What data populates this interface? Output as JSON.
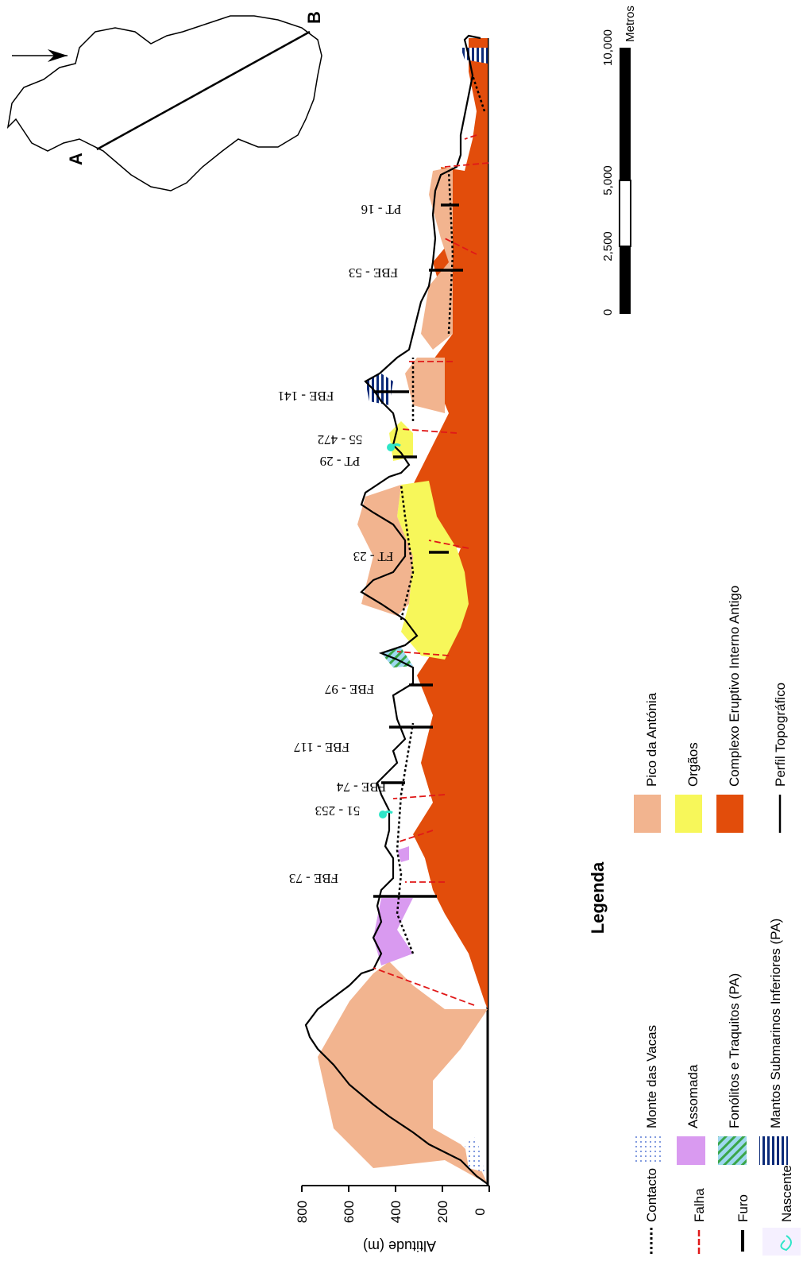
{
  "profile": {
    "y_axis_title": "Altitude (m)",
    "y_ticks": [
      "0",
      "200",
      "400",
      "600",
      "800"
    ],
    "wells": [
      {
        "label": "FBE - 73"
      },
      {
        "label": "51 - 253"
      },
      {
        "label": "FBE - 74"
      },
      {
        "label": "FBE - 117"
      },
      {
        "label": "FBE - 97"
      },
      {
        "label": "FT - 23"
      },
      {
        "label": "PT - 29"
      },
      {
        "label": "55 - 472"
      },
      {
        "label": "FBE - 141"
      },
      {
        "label": "FBE - 53"
      },
      {
        "label": "PT - 16"
      }
    ]
  },
  "map": {
    "point_a": "A",
    "point_b": "B"
  },
  "scale_bar": {
    "unit": "Metros",
    "labels": [
      "0",
      "2,500",
      "5,000",
      "10,000"
    ]
  },
  "legend": {
    "title": "Legenda",
    "items": [
      {
        "label": "Contacto",
        "symbol": "dotted-line"
      },
      {
        "label": "Falha",
        "symbol": "red-dashed-line"
      },
      {
        "label": "Furo",
        "symbol": "black-bar"
      },
      {
        "label": "Nascente",
        "symbol": "spring-icon"
      },
      {
        "label": "Monte das Vacas",
        "symbol": "blue-dots",
        "color": "#5b7bd5"
      },
      {
        "label": "Assomada",
        "symbol": "fill",
        "color": "#d99af0"
      },
      {
        "label": "Fonólitos e Traquitos (PA)",
        "symbol": "hatch",
        "color": "#9fd8f0"
      },
      {
        "label": "Mantos Submarinos Inferiores (PA)",
        "symbol": "stripes",
        "color": "#0b2a78"
      },
      {
        "label": "Pico da Antónia",
        "symbol": "fill",
        "color": "#f2b48f"
      },
      {
        "label": "Orgãos",
        "symbol": "fill",
        "color": "#f7f75a"
      },
      {
        "label": "Complexo Eruptivo Interno Antigo",
        "symbol": "fill",
        "color": "#e24d0b"
      },
      {
        "label": "Perfil Topográfico",
        "symbol": "solid-line"
      }
    ]
  }
}
